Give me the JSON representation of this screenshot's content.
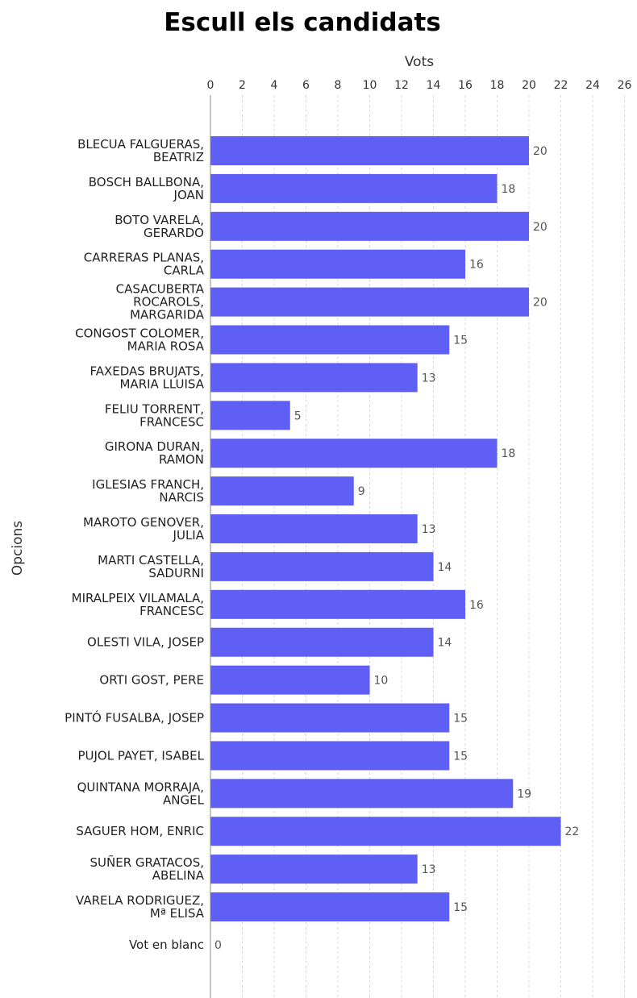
{
  "chart_data": {
    "type": "bar",
    "orientation": "horizontal",
    "title": "Escull els candidats",
    "xlabel": "Vots",
    "ylabel": "Opcions",
    "xlim": [
      0,
      26
    ],
    "xticks": [
      0,
      2,
      4,
      6,
      8,
      10,
      12,
      14,
      16,
      18,
      20,
      22,
      24,
      26
    ],
    "grid": true,
    "bar_color": "#5f5ff5",
    "categories": [
      "BLECUA FALGUERAS,\nBEATRIZ",
      "BOSCH BALLBONA,\nJOAN",
      "BOTO VARELA,\nGERARDO",
      "CARRERAS PLANAS,\nCARLA",
      "CASACUBERTA\nROCAROLS,\nMARGARIDA",
      "CONGOST COLOMER,\nMARIA ROSA",
      "FAXEDAS BRUJATS,\nMARIA LLUISA",
      "FELIU TORRENT,\nFRANCESC",
      "GIRONA DURAN,\nRAMON",
      "IGLESIAS FRANCH,\nNARCIS",
      "MAROTO GENOVER,\nJULIA",
      "MARTI CASTELLA,\nSADURNI",
      "MIRALPEIX VILAMALA,\nFRANCESC",
      "OLESTI VILA, JOSEP",
      "ORTI GOST, PERE",
      "PINTÓ FUSALBA, JOSEP",
      "PUJOL PAYET, ISABEL",
      "QUINTANA MORRAJA,\nANGEL",
      "SAGUER HOM, ENRIC",
      "SUÑER GRATACOS,\nABELINA",
      "VARELA RODRIGUEZ,\nMª ELISA",
      "Vot en blanc"
    ],
    "values": [
      20,
      18,
      20,
      16,
      20,
      15,
      13,
      5,
      18,
      9,
      13,
      14,
      16,
      14,
      10,
      15,
      15,
      19,
      22,
      13,
      15,
      0
    ]
  }
}
